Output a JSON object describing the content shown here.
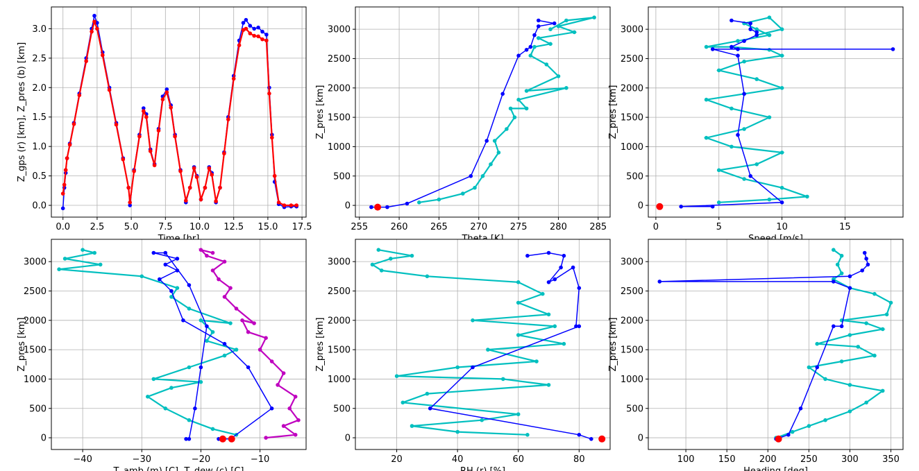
{
  "colors": {
    "red": "#ff0000",
    "blue": "#0000ff",
    "cyan": "#00bfbf",
    "magenta": "#bf00bf",
    "grid": "#b0b0b0"
  },
  "chart_data": [
    {
      "type": "scatter",
      "xlabel": "Time [hr]",
      "ylabel": "Z_gps (r) [km], Z_pres (b) [km]",
      "xlim": [
        -0.85,
        17.8
      ],
      "ylim": [
        -0.2,
        3.37
      ],
      "xticks": [
        0.0,
        2.5,
        5.0,
        7.5,
        10.0,
        12.5,
        15.0,
        17.5
      ],
      "xtick_labels": [
        "0.0",
        "2.5",
        "5.0",
        "7.5",
        "10.0",
        "12.5",
        "15.0",
        "17.5"
      ],
      "yticks": [
        0.0,
        0.5,
        1.0,
        1.5,
        2.0,
        2.5,
        3.0
      ],
      "ytick_labels": [
        "0.0",
        "0.5",
        "1.0",
        "1.5",
        "2.0",
        "2.5",
        "3.0"
      ],
      "grid": true,
      "series": [
        {
          "color": "blue",
          "marker": "dot",
          "line": true,
          "x": [
            0.0,
            0.1,
            0.2,
            0.3,
            0.5,
            0.8,
            1.2,
            1.7,
            2.1,
            2.3,
            2.5,
            2.9,
            3.4,
            3.9,
            4.4,
            4.8,
            4.9,
            5.2,
            5.6,
            5.9,
            6.1,
            6.4,
            6.7,
            7.0,
            7.3,
            7.6,
            7.9,
            8.2,
            8.6,
            9.0,
            9.3,
            9.6,
            9.8,
            10.1,
            10.4,
            10.7,
            10.9,
            11.2,
            11.5,
            11.8,
            12.1,
            12.5,
            12.9,
            13.2,
            13.4,
            13.7,
            14.0,
            14.3,
            14.6,
            14.9,
            15.1,
            15.3,
            15.5,
            15.8,
            16.2,
            16.7,
            17.1
          ],
          "y": [
            -0.05,
            0.3,
            0.55,
            0.8,
            1.05,
            1.4,
            1.9,
            2.5,
            3.0,
            3.22,
            3.1,
            2.6,
            2.0,
            1.4,
            0.8,
            0.3,
            0.0,
            0.6,
            1.2,
            1.65,
            1.55,
            0.95,
            0.7,
            1.3,
            1.85,
            1.97,
            1.7,
            1.2,
            0.6,
            0.05,
            0.3,
            0.65,
            0.5,
            0.1,
            0.3,
            0.65,
            0.55,
            0.05,
            0.3,
            0.9,
            1.5,
            2.2,
            2.8,
            3.1,
            3.15,
            3.05,
            3.0,
            3.02,
            2.95,
            2.9,
            2.0,
            1.2,
            0.4,
            0.02,
            -0.03,
            -0.02,
            -0.02
          ]
        },
        {
          "color": "red",
          "marker": "dot",
          "line": true,
          "x": [
            0.0,
            0.1,
            0.2,
            0.3,
            0.5,
            0.8,
            1.2,
            1.7,
            2.1,
            2.3,
            2.5,
            2.9,
            3.4,
            3.9,
            4.4,
            4.8,
            4.9,
            5.2,
            5.6,
            5.9,
            6.1,
            6.4,
            6.7,
            7.0,
            7.3,
            7.6,
            7.9,
            8.2,
            8.6,
            9.0,
            9.3,
            9.6,
            9.8,
            10.1,
            10.4,
            10.7,
            10.9,
            11.2,
            11.5,
            11.8,
            12.1,
            12.5,
            12.9,
            13.2,
            13.4,
            13.7,
            14.0,
            14.3,
            14.6,
            14.9,
            15.1,
            15.3,
            15.5,
            15.8,
            16.2,
            16.7,
            17.1
          ],
          "y": [
            0.2,
            0.35,
            0.6,
            0.8,
            1.03,
            1.38,
            1.87,
            2.45,
            2.95,
            3.12,
            3.0,
            2.55,
            1.96,
            1.37,
            0.78,
            0.3,
            0.05,
            0.58,
            1.17,
            1.6,
            1.5,
            0.92,
            0.68,
            1.27,
            1.8,
            1.92,
            1.66,
            1.17,
            0.58,
            0.08,
            0.3,
            0.63,
            0.48,
            0.1,
            0.3,
            0.63,
            0.52,
            0.07,
            0.3,
            0.88,
            1.46,
            2.15,
            2.72,
            2.98,
            3.0,
            2.92,
            2.88,
            2.87,
            2.82,
            2.8,
            1.9,
            1.15,
            0.5,
            0.05,
            0.0,
            0.0,
            0.0
          ]
        }
      ]
    },
    {
      "type": "scatter",
      "xlabel": "Theta [K]",
      "ylabel": "Z_pres [km]",
      "xlim": [
        254.5,
        286.5
      ],
      "ylim": [
        -200,
        3380
      ],
      "xticks": [
        255,
        260,
        265,
        270,
        275,
        280,
        285
      ],
      "xtick_labels": [
        "255",
        "260",
        "265",
        "270",
        "275",
        "280",
        "285"
      ],
      "yticks": [
        0,
        500,
        1000,
        1500,
        2000,
        2500,
        3000
      ],
      "ytick_labels": [
        "0",
        "500",
        "1000",
        "1500",
        "2000",
        "2500",
        "3000"
      ],
      "grid": true,
      "series": [
        {
          "color": "cyan",
          "marker": "dot",
          "line": true,
          "x": [
            262.5,
            265,
            268,
            269.5,
            270.5,
            271.5,
            272.5,
            272,
            273.5,
            274.5,
            274,
            276,
            275,
            281,
            276,
            280,
            278.5,
            276.5,
            277,
            279,
            277.5,
            282,
            280,
            284.5,
            281,
            279
          ],
          "y": [
            50,
            100,
            200,
            300,
            500,
            700,
            900,
            1100,
            1300,
            1500,
            1650,
            1650,
            1800,
            2000,
            1950,
            2200,
            2400,
            2550,
            2700,
            2750,
            2850,
            2950,
            3050,
            3200,
            3150,
            3000
          ]
        },
        {
          "color": "blue",
          "marker": "dot",
          "line": true,
          "x": [
            256.5,
            258.5,
            261,
            269,
            271,
            273,
            275,
            276,
            276.5,
            277,
            277.5,
            279.5,
            277.5
          ],
          "y": [
            -30,
            -30,
            30,
            500,
            1100,
            1900,
            2550,
            2650,
            2700,
            2900,
            3050,
            3100,
            3150
          ]
        },
        {
          "color": "red",
          "marker": "big-dot",
          "line": false,
          "x": [
            257.3
          ],
          "y": [
            -30
          ]
        }
      ]
    },
    {
      "type": "scatter",
      "xlabel": "Speed [m/s]",
      "ylabel": "Z_pres [km]",
      "xlim": [
        -0.6,
        19.6
      ],
      "ylim": [
        -200,
        3380
      ],
      "xticks": [
        0,
        5,
        10,
        15
      ],
      "xtick_labels": [
        "0",
        "5",
        "10",
        "15"
      ],
      "yticks": [
        0,
        500,
        1000,
        1500,
        2000,
        2500,
        3000
      ],
      "ytick_labels": [
        "0",
        "500",
        "1000",
        "1500",
        "2000",
        "2500",
        "3000"
      ],
      "grid": true,
      "series": [
        {
          "color": "cyan",
          "marker": "dot",
          "line": true,
          "x": [
            5,
            9,
            12,
            10,
            7,
            5,
            8,
            10,
            6,
            4,
            7,
            9,
            6,
            4,
            7,
            10,
            8,
            5,
            7,
            10,
            9,
            6,
            4,
            6.5,
            9,
            8,
            7,
            9,
            10,
            8
          ],
          "y": [
            50,
            100,
            150,
            300,
            450,
            600,
            700,
            900,
            1000,
            1150,
            1300,
            1500,
            1650,
            1800,
            1900,
            2000,
            2150,
            2300,
            2450,
            2550,
            2650,
            2700,
            2700,
            2800,
            2900,
            3000,
            3100,
            3200,
            3000,
            2900
          ]
        },
        {
          "color": "blue",
          "marker": "dot",
          "line": true,
          "x": [
            4.5,
            2,
            10,
            7.5,
            6.5,
            7,
            6.5,
            4.5,
            18.8,
            6.5,
            6,
            7,
            8,
            8,
            7.5,
            7.5,
            6
          ],
          "y": [
            -20,
            -20,
            50,
            500,
            1200,
            1900,
            2550,
            2660,
            2660,
            2660,
            2700,
            2800,
            2900,
            2950,
            3000,
            3100,
            3150
          ]
        },
        {
          "color": "red",
          "marker": "big-dot",
          "line": false,
          "x": [
            0.3
          ],
          "y": [
            -20
          ]
        }
      ]
    },
    {
      "type": "scatter",
      "xlabel": "T_amb (m) [C], T_dew (c) [C]",
      "ylabel": "Z_pres [km]",
      "xlim": [
        -45.3,
        -2.2
      ],
      "ylim": [
        -200,
        3380
      ],
      "xticks": [
        -40,
        -30,
        -20,
        -10
      ],
      "xtick_labels": [
        "−40",
        "−30",
        "−20",
        "−10"
      ],
      "yticks": [
        0,
        500,
        1000,
        1500,
        2000,
        2500,
        3000
      ],
      "ytick_labels": [
        "0",
        "500",
        "1000",
        "1500",
        "2000",
        "2500",
        "3000"
      ],
      "grid": true,
      "series": [
        {
          "color": "magenta",
          "marker": "dot",
          "line": true,
          "x": [
            -9,
            -4,
            -6,
            -3.5,
            -5,
            -4,
            -7,
            -6,
            -8,
            -10,
            -9,
            -12,
            -13,
            -11,
            -14,
            -16,
            -15,
            -17,
            -18,
            -16,
            -19,
            -20,
            -18
          ],
          "y": [
            0,
            50,
            200,
            300,
            500,
            700,
            900,
            1100,
            1300,
            1500,
            1700,
            1800,
            2000,
            1950,
            2200,
            2400,
            2550,
            2700,
            2850,
            3000,
            3100,
            3200,
            3150
          ]
        },
        {
          "color": "cyan",
          "marker": "dot",
          "line": true,
          "x": [
            -14,
            -18,
            -22,
            -26,
            -29,
            -25,
            -20,
            -28,
            -22,
            -16,
            -14,
            -19,
            -18,
            -20,
            -15,
            -22,
            -25,
            -24,
            -30,
            -44,
            -37,
            -43,
            -38,
            -40
          ],
          "y": [
            50,
            150,
            300,
            500,
            700,
            850,
            950,
            1000,
            1200,
            1400,
            1500,
            1650,
            1800,
            2000,
            1950,
            2200,
            2400,
            2550,
            2750,
            2870,
            2950,
            3050,
            3150,
            3200
          ]
        },
        {
          "color": "blue",
          "marker": "dot",
          "line": true,
          "x": [
            -17,
            -15,
            -8,
            -12,
            -16,
            -23,
            -25,
            -27,
            -24,
            -26,
            -24,
            -28,
            -26,
            -22,
            -19,
            -20,
            -21,
            -22,
            -22.5
          ],
          "y": [
            -20,
            -20,
            500,
            1200,
            1600,
            2000,
            2500,
            2700,
            2850,
            2950,
            3050,
            3150,
            3150,
            2600,
            1900,
            1200,
            500,
            -20,
            -20
          ]
        },
        {
          "color": "red",
          "marker": "big-dot",
          "line": false,
          "x": [
            -16.3,
            -14.8
          ],
          "y": [
            -20,
            -20
          ]
        }
      ]
    },
    {
      "type": "scatter",
      "xlabel": "RH (r) [%]",
      "ylabel": "Z_pres [km]",
      "xlim": [
        6.4,
        90.2
      ],
      "ylim": [
        -200,
        3380
      ],
      "xticks": [
        20,
        40,
        60,
        80
      ],
      "xtick_labels": [
        "20",
        "40",
        "60",
        "80"
      ],
      "yticks": [
        0,
        500,
        1000,
        1500,
        2000,
        2500,
        3000
      ],
      "ytick_labels": [
        "0",
        "500",
        "1000",
        "1500",
        "2000",
        "2500",
        "3000"
      ],
      "grid": true,
      "series": [
        {
          "color": "cyan",
          "marker": "dot",
          "line": true,
          "x": [
            63,
            40,
            25,
            48,
            60,
            22,
            30,
            70,
            55,
            20,
            40,
            66,
            50,
            75,
            60,
            72,
            45,
            70,
            60,
            68,
            60,
            30,
            15,
            12,
            18,
            25,
            14
          ],
          "y": [
            50,
            100,
            200,
            300,
            400,
            600,
            750,
            900,
            1000,
            1050,
            1200,
            1300,
            1500,
            1600,
            1750,
            1900,
            2000,
            2100,
            2300,
            2450,
            2650,
            2750,
            2850,
            2950,
            3050,
            3100,
            3200
          ]
        },
        {
          "color": "blue",
          "marker": "dot",
          "line": true,
          "x": [
            84,
            80,
            31,
            45,
            80,
            79,
            80,
            78,
            72,
            70,
            74,
            75,
            70,
            63
          ],
          "y": [
            -20,
            50,
            500,
            1200,
            1900,
            1900,
            2550,
            2900,
            2700,
            2650,
            2900,
            3100,
            3150,
            3100
          ]
        },
        {
          "color": "red",
          "marker": "big-dot",
          "line": false,
          "x": [
            87.5
          ],
          "y": [
            -20
          ]
        }
      ]
    },
    {
      "type": "scatter",
      "xlabel": "Heading [deg]",
      "ylabel": "Z_pres [km]",
      "xlim": [
        54.2,
        364.8
      ],
      "ylim": [
        -200,
        3380
      ],
      "xticks": [
        100,
        150,
        200,
        250,
        300,
        350
      ],
      "xtick_labels": [
        "100",
        "150",
        "200",
        "250",
        "300",
        "350"
      ],
      "yticks": [
        0,
        500,
        1000,
        1500,
        2000,
        2500,
        3000
      ],
      "ytick_labels": [
        "0",
        "500",
        "1000",
        "1500",
        "2000",
        "2500",
        "3000"
      ],
      "grid": true,
      "series": [
        {
          "color": "cyan",
          "marker": "dot",
          "line": true,
          "x": [
            210,
            230,
            250,
            270,
            300,
            320,
            340,
            300,
            270,
            250,
            290,
            330,
            310,
            260,
            300,
            340,
            320,
            290,
            345,
            350,
            330,
            300,
            280,
            290,
            285,
            290,
            280
          ],
          "y": [
            0,
            100,
            200,
            300,
            450,
            600,
            800,
            900,
            1000,
            1200,
            1300,
            1400,
            1550,
            1600,
            1750,
            1850,
            1950,
            2000,
            2100,
            2300,
            2450,
            2550,
            2700,
            2800,
            2950,
            3100,
            3200
          ]
        },
        {
          "color": "blue",
          "marker": "dot",
          "line": true,
          "x": [
            210,
            225,
            240,
            260,
            280,
            290,
            300,
            280,
            68,
            300,
            315,
            322,
            320,
            318
          ],
          "y": [
            -20,
            50,
            500,
            1200,
            1900,
            1900,
            2550,
            2660,
            2660,
            2750,
            2850,
            2950,
            3050,
            3150
          ]
        },
        {
          "color": "red",
          "marker": "big-dot",
          "line": false,
          "x": [
            213
          ],
          "y": [
            -20
          ]
        }
      ]
    }
  ]
}
